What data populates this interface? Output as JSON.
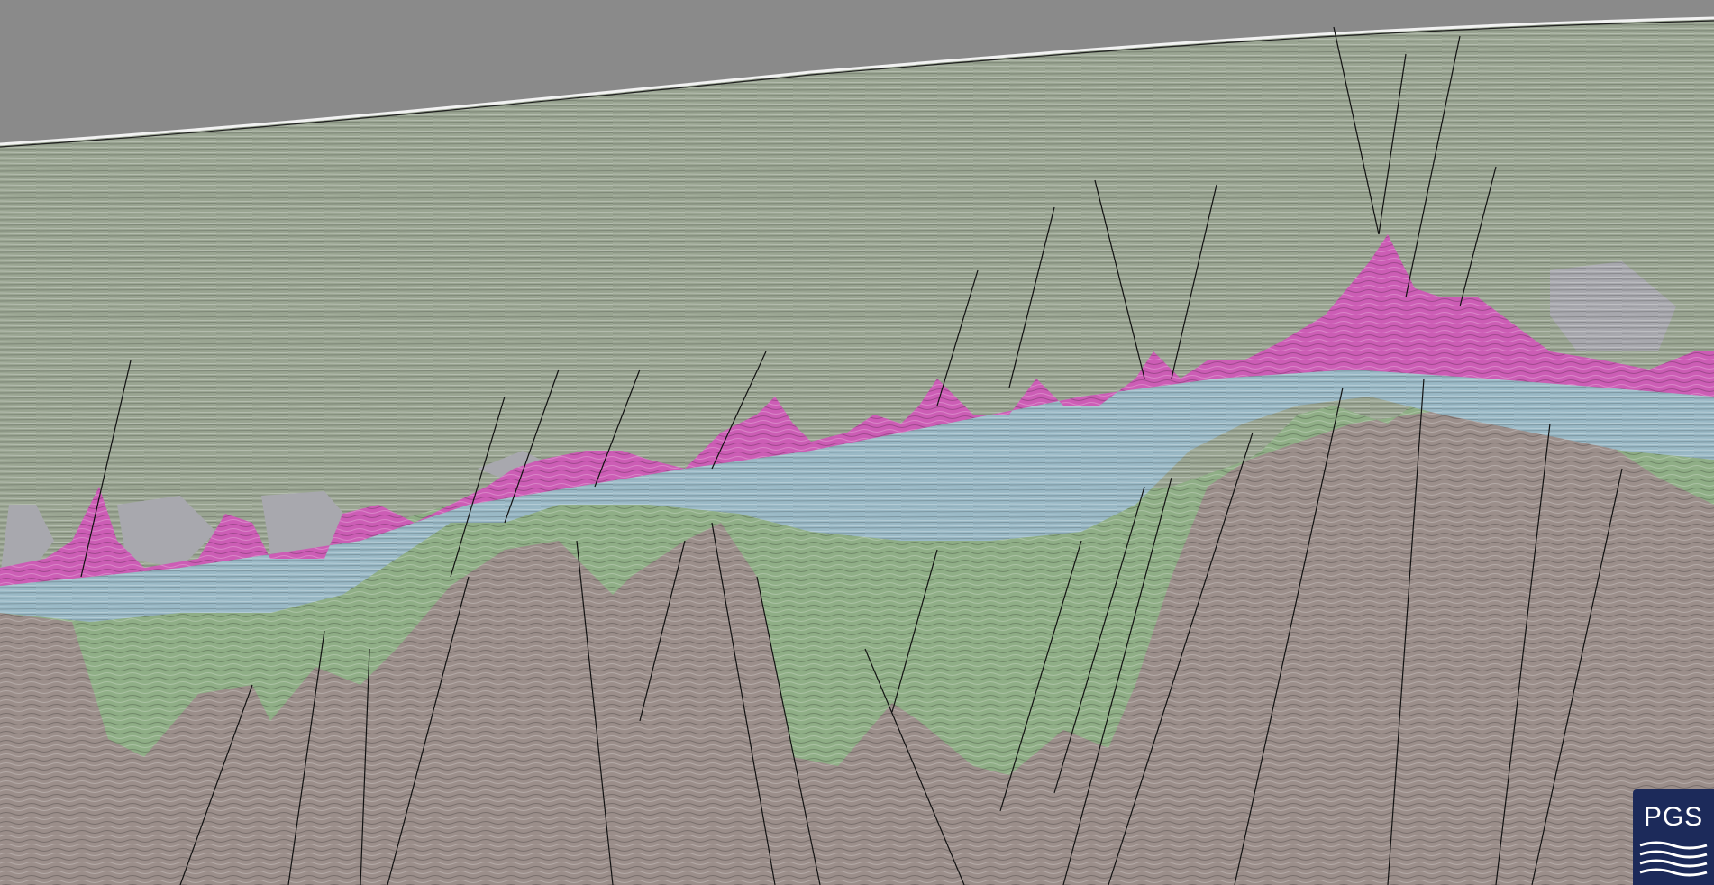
{
  "logo": {
    "text": "PGS",
    "icon": "pgs-waves-logo-icon",
    "background": "#1c2a5a",
    "foreground": "#ffffff"
  },
  "colors": {
    "water": "#8a8a8a",
    "sediment": "#9aa592",
    "salt": "#cc5db5",
    "reservoir": "#9ab9c6",
    "syn_rift": "#8fae86",
    "basement": "#9b8e8a",
    "grey_body": "#a8a8ae",
    "fault_line": "#111111"
  }
}
